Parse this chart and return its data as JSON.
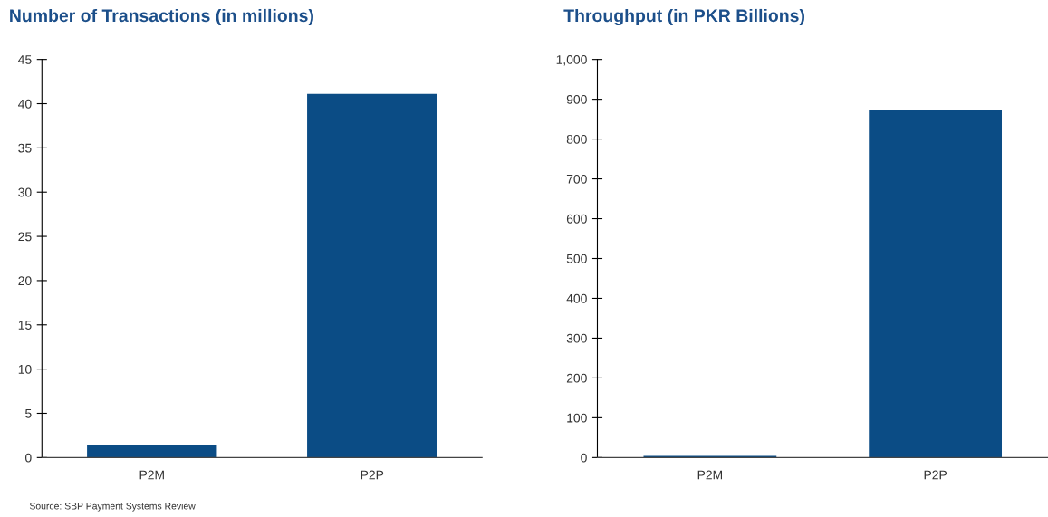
{
  "chart_data": [
    {
      "type": "bar",
      "title": "Number of Transactions (in millions)",
      "categories": [
        "P2M",
        "P2P"
      ],
      "values": [
        1.4,
        41.1
      ],
      "color": "#0b4c85",
      "ylim": [
        0,
        45
      ],
      "yticks": [
        0,
        5,
        10,
        15,
        20,
        25,
        30,
        35,
        40,
        45
      ],
      "grid": false,
      "legend": false,
      "annotations": [
        "Source: SBP Payment Systems Review"
      ]
    },
    {
      "type": "bar",
      "title": "Throughput (in PKR Billions)",
      "categories": [
        "P2M",
        "P2P"
      ],
      "values": [
        4,
        872
      ],
      "color": "#0b4c85",
      "ylim": [
        0,
        1000
      ],
      "yticks": [
        0,
        100,
        200,
        300,
        400,
        500,
        600,
        700,
        800,
        900,
        {
          "value": 1000,
          "label": "1,000"
        }
      ],
      "grid": false,
      "legend": false
    }
  ]
}
